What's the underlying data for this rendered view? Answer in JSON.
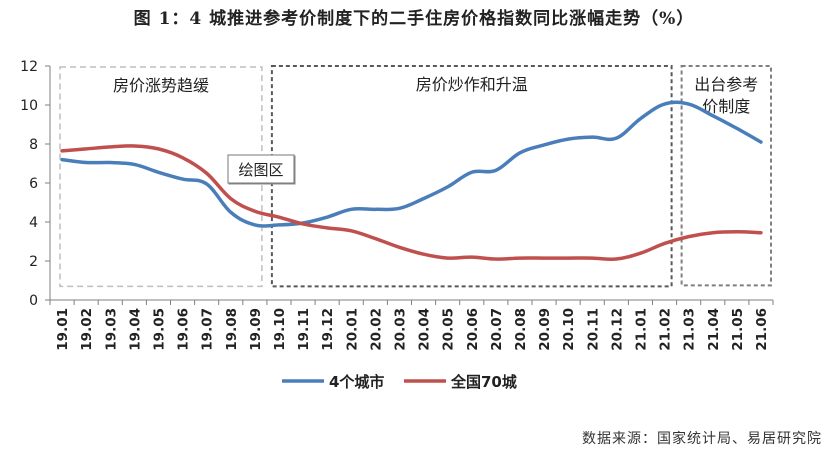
{
  "title": "图 1：4 城推进参考价制度下的二手住房价格指数同比涨幅走势（%）",
  "source": "数据来源：国家统计局、易居研究院",
  "tooltip": "绘图区",
  "colors": {
    "series1": "#4a7ebb",
    "series2": "#c0504d",
    "axis": "#7f7f7f"
  },
  "chart_data": {
    "type": "line",
    "x": [
      "19.01",
      "19.02",
      "19.03",
      "19.04",
      "19.05",
      "19.06",
      "19.07",
      "19.08",
      "19.09",
      "19.10",
      "19.11",
      "19.12",
      "20.01",
      "20.02",
      "20.03",
      "20.04",
      "20.05",
      "20.06",
      "20.07",
      "20.08",
      "20.09",
      "20.10",
      "20.11",
      "20.12",
      "21.01",
      "21.02",
      "21.03",
      "21.04",
      "21.05",
      "21.06"
    ],
    "yticks": [
      "0",
      "2",
      "4",
      "6",
      "8",
      "10",
      "12"
    ],
    "ylim": [
      0,
      12
    ],
    "legend_position": "bottom",
    "series": [
      {
        "name": "4个城市",
        "values": [
          7.2,
          7.05,
          7.05,
          6.95,
          6.55,
          6.2,
          5.95,
          4.5,
          3.85,
          3.85,
          3.95,
          4.25,
          4.65,
          4.65,
          4.7,
          5.2,
          5.8,
          6.55,
          6.65,
          7.55,
          7.95,
          8.25,
          8.35,
          8.3,
          9.3,
          10.05,
          10.05,
          9.45,
          8.8,
          8.1
        ]
      },
      {
        "name": "全国70城",
        "values": [
          7.65,
          7.75,
          7.85,
          7.9,
          7.75,
          7.3,
          6.5,
          5.2,
          4.55,
          4.25,
          3.9,
          3.7,
          3.55,
          3.15,
          2.7,
          2.35,
          2.15,
          2.2,
          2.1,
          2.15,
          2.15,
          2.15,
          2.15,
          2.1,
          2.4,
          2.9,
          3.25,
          3.45,
          3.5,
          3.45
        ]
      }
    ],
    "annotations": [
      {
        "text": "房价涨势趋缓",
        "x_start": "19.01",
        "x_end": "19.09"
      },
      {
        "text": "房价炒作和升温",
        "x_start": "19.10",
        "x_end": "21.02"
      },
      {
        "text": "出台参考\n价制度",
        "x_start": "21.03",
        "x_end": "21.06"
      }
    ]
  }
}
